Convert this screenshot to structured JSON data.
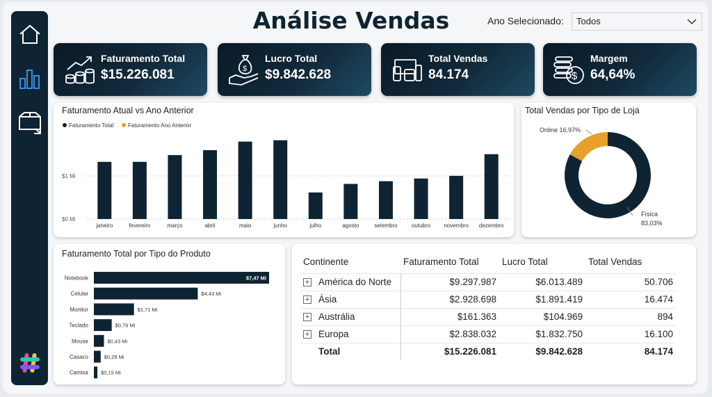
{
  "page_title": "Análise Vendas",
  "filter": {
    "label": "Ano Selecionado:",
    "value": "Todos"
  },
  "sidebar": [
    {
      "name": "home-icon"
    },
    {
      "name": "bar-chart-icon"
    },
    {
      "name": "box-return-icon"
    }
  ],
  "kpis": [
    {
      "label": "Faturamento Total",
      "value": "$15.226.081",
      "icon": "growth-coins-icon"
    },
    {
      "label": "Lucro Total",
      "value": "$9.842.628",
      "icon": "money-bag-hand-icon"
    },
    {
      "label": "Total Vendas",
      "value": "84.174",
      "icon": "devices-icon"
    },
    {
      "label": "Margem",
      "value": "64,64%",
      "icon": "coins-icon"
    }
  ],
  "revenue_chart": {
    "title": "Faturamento Atual vs Ano Anterior",
    "legend": [
      "Faturamento Total",
      "Faturamento Ano Anterior"
    ],
    "y_ticks": [
      "$0 Mi",
      "$1 Mi"
    ]
  },
  "store_chart": {
    "title": "Total Vendas por Tipo de Loja",
    "online_label": "Online 16,97%",
    "fisica_label": "Física",
    "fisica_pct": "83,03%"
  },
  "product_chart": {
    "title": "Faturamento Total por Tipo do Produto"
  },
  "table": {
    "headers": [
      "Continente",
      "Faturamento Total",
      "Lucro Total",
      "Total Vendas"
    ],
    "rows": [
      [
        "América do Norte",
        "$9.297.987",
        "$6.013.489",
        "50.706"
      ],
      [
        "Ásia",
        "$2.928.698",
        "$1.891.419",
        "16.474"
      ],
      [
        "Austrália",
        "$161.363",
        "$104.969",
        "894"
      ],
      [
        "Europa",
        "$2.838.032",
        "$1.832.750",
        "16.100"
      ]
    ],
    "total": [
      "Total",
      "$15.226.081",
      "$9.842.628",
      "84.174"
    ],
    "expander_symbol": "+"
  },
  "colors": {
    "navy": "#0f2433",
    "orange": "#e8a02c"
  },
  "chart_data": [
    {
      "type": "bar",
      "title": "Faturamento Atual vs Ano Anterior",
      "categories": [
        "janeiro",
        "fevereiro",
        "março",
        "abril",
        "maio",
        "junho",
        "julho",
        "agosto",
        "setembro",
        "outubro",
        "novembro",
        "dezembro"
      ],
      "series": [
        {
          "name": "Faturamento Total",
          "values": [
            1.27,
            1.27,
            1.42,
            1.53,
            1.72,
            1.75,
            0.59,
            0.78,
            0.84,
            0.9,
            0.96,
            1.44
          ]
        }
      ],
      "ylim": [
        0,
        1.9
      ],
      "y_unit": "Mi",
      "grid": true,
      "legend_position": "top-left"
    },
    {
      "type": "pie",
      "title": "Total Vendas por Tipo de Loja",
      "labels": [
        "Física",
        "Online"
      ],
      "values": [
        83.03,
        16.97
      ]
    },
    {
      "type": "bar",
      "orientation": "horizontal",
      "title": "Faturamento Total por Tipo do Produto",
      "categories": [
        "Notebook",
        "Celular",
        "Monitor",
        "Teclado",
        "Mouse",
        "Casaco",
        "Camisa"
      ],
      "values": [
        7.47,
        4.43,
        1.71,
        0.76,
        0.43,
        0.29,
        0.15
      ],
      "value_labels": [
        "$7,47 Mi",
        "$4,43 Mi",
        "$1,71 Mi",
        "$0,76 Mi",
        "$0,43 Mi",
        "$0,29 Mi",
        "$0,15 Mi"
      ],
      "y_unit": "Mi"
    }
  ]
}
